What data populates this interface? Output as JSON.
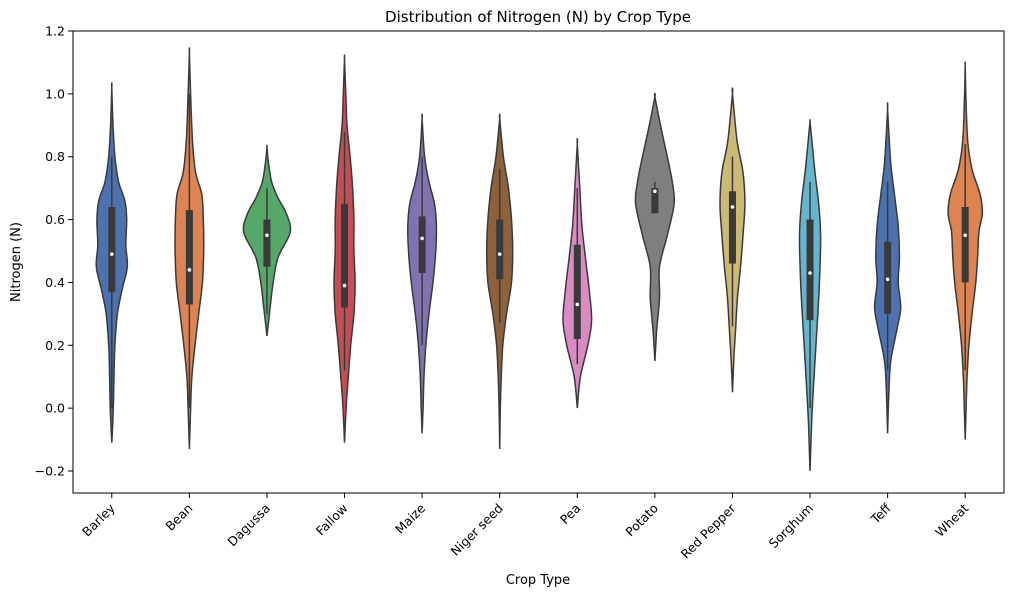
{
  "chart_data": {
    "type": "violin",
    "title": "Distribution of Nitrogen (N) by Crop Type",
    "xlabel": "Crop Type",
    "ylabel": "Nitrogen (N)",
    "ylim": [
      -0.27,
      1.2
    ],
    "yticks": [
      -0.2,
      0.0,
      0.2,
      0.4,
      0.6,
      0.8,
      1.0,
      1.2
    ],
    "ytick_labels": [
      "−0.2",
      "0.0",
      "0.2",
      "0.4",
      "0.6",
      "0.8",
      "1.0",
      "1.2"
    ],
    "grid": false,
    "categories": [
      "Barley",
      "Bean",
      "Dagussa",
      "Fallow",
      "Maize",
      "Niger seed",
      "Pea",
      "Potato",
      "Red Pepper",
      "Sorghum",
      "Teff",
      "Wheat"
    ],
    "series": [
      {
        "category": "Barley",
        "color": "#4c72b0",
        "min": -0.11,
        "max": 1.02,
        "q1": 0.37,
        "median": 0.49,
        "q3": 0.64,
        "whisker_low": 0.0,
        "whisker_high": 0.8,
        "density": [
          [
            -0.11,
            0.0
          ],
          [
            0.0,
            0.05
          ],
          [
            0.1,
            0.07
          ],
          [
            0.2,
            0.1
          ],
          [
            0.3,
            0.18
          ],
          [
            0.38,
            0.34
          ],
          [
            0.45,
            0.5
          ],
          [
            0.52,
            0.45
          ],
          [
            0.6,
            0.48
          ],
          [
            0.66,
            0.42
          ],
          [
            0.72,
            0.22
          ],
          [
            0.8,
            0.1
          ],
          [
            0.9,
            0.04
          ],
          [
            1.02,
            0.0
          ]
        ]
      },
      {
        "category": "Bean",
        "color": "#dd8452",
        "min": -0.13,
        "max": 1.13,
        "q1": 0.33,
        "median": 0.44,
        "q3": 0.63,
        "whisker_low": 0.0,
        "whisker_high": 1.0,
        "density": [
          [
            -0.13,
            0.0
          ],
          [
            0.0,
            0.04
          ],
          [
            0.1,
            0.08
          ],
          [
            0.2,
            0.18
          ],
          [
            0.3,
            0.3
          ],
          [
            0.4,
            0.42
          ],
          [
            0.5,
            0.46
          ],
          [
            0.6,
            0.45
          ],
          [
            0.68,
            0.4
          ],
          [
            0.75,
            0.2
          ],
          [
            0.85,
            0.1
          ],
          [
            1.0,
            0.04
          ],
          [
            1.13,
            0.0
          ]
        ]
      },
      {
        "category": "Dagussa",
        "color": "#55a868",
        "min": 0.23,
        "max": 0.83,
        "q1": 0.45,
        "median": 0.55,
        "q3": 0.6,
        "whisker_low": 0.3,
        "whisker_high": 0.7,
        "density": [
          [
            0.23,
            0.0
          ],
          [
            0.3,
            0.08
          ],
          [
            0.4,
            0.2
          ],
          [
            0.48,
            0.36
          ],
          [
            0.56,
            0.75
          ],
          [
            0.62,
            0.62
          ],
          [
            0.67,
            0.35
          ],
          [
            0.72,
            0.15
          ],
          [
            0.78,
            0.05
          ],
          [
            0.83,
            0.0
          ]
        ]
      },
      {
        "category": "Fallow",
        "color": "#c44e52",
        "min": -0.11,
        "max": 1.11,
        "q1": 0.32,
        "median": 0.39,
        "q3": 0.65,
        "whisker_low": 0.12,
        "whisker_high": 0.88,
        "density": [
          [
            -0.11,
            0.0
          ],
          [
            0.0,
            0.05
          ],
          [
            0.1,
            0.12
          ],
          [
            0.2,
            0.2
          ],
          [
            0.3,
            0.3
          ],
          [
            0.4,
            0.34
          ],
          [
            0.5,
            0.3
          ],
          [
            0.6,
            0.3
          ],
          [
            0.7,
            0.26
          ],
          [
            0.8,
            0.18
          ],
          [
            0.9,
            0.08
          ],
          [
            1.0,
            0.04
          ],
          [
            1.11,
            0.0
          ]
        ]
      },
      {
        "category": "Maize",
        "color": "#8172b2",
        "min": -0.08,
        "max": 0.92,
        "q1": 0.43,
        "median": 0.54,
        "q3": 0.61,
        "whisker_low": 0.2,
        "whisker_high": 0.8,
        "density": [
          [
            -0.08,
            0.0
          ],
          [
            0.0,
            0.03
          ],
          [
            0.1,
            0.06
          ],
          [
            0.2,
            0.12
          ],
          [
            0.3,
            0.22
          ],
          [
            0.4,
            0.35
          ],
          [
            0.5,
            0.44
          ],
          [
            0.58,
            0.46
          ],
          [
            0.65,
            0.4
          ],
          [
            0.72,
            0.22
          ],
          [
            0.8,
            0.08
          ],
          [
            0.92,
            0.0
          ]
        ]
      },
      {
        "category": "Niger seed",
        "color": "#8c613c",
        "min": -0.13,
        "max": 0.92,
        "q1": 0.41,
        "median": 0.49,
        "q3": 0.6,
        "whisker_low": 0.27,
        "whisker_high": 0.76,
        "density": [
          [
            -0.13,
            0.0
          ],
          [
            0.0,
            0.02
          ],
          [
            0.1,
            0.05
          ],
          [
            0.2,
            0.1
          ],
          [
            0.3,
            0.22
          ],
          [
            0.4,
            0.38
          ],
          [
            0.5,
            0.42
          ],
          [
            0.6,
            0.38
          ],
          [
            0.7,
            0.28
          ],
          [
            0.8,
            0.12
          ],
          [
            0.92,
            0.0
          ]
        ]
      },
      {
        "category": "Pea",
        "color": "#da8bc3",
        "min": 0.0,
        "max": 0.84,
        "q1": 0.22,
        "median": 0.33,
        "q3": 0.52,
        "whisker_low": 0.14,
        "whisker_high": 0.7,
        "density": [
          [
            0.0,
            0.0
          ],
          [
            0.1,
            0.1
          ],
          [
            0.2,
            0.34
          ],
          [
            0.28,
            0.46
          ],
          [
            0.38,
            0.38
          ],
          [
            0.48,
            0.26
          ],
          [
            0.58,
            0.15
          ],
          [
            0.7,
            0.08
          ],
          [
            0.84,
            0.0
          ]
        ]
      },
      {
        "category": "Potato",
        "color": "#7f7f7f",
        "min": 0.15,
        "max": 0.99,
        "q1": 0.62,
        "median": 0.69,
        "q3": 0.7,
        "whisker_low": 0.62,
        "whisker_high": 0.72,
        "density": [
          [
            0.15,
            0.0
          ],
          [
            0.25,
            0.06
          ],
          [
            0.35,
            0.15
          ],
          [
            0.45,
            0.15
          ],
          [
            0.55,
            0.4
          ],
          [
            0.65,
            0.62
          ],
          [
            0.72,
            0.56
          ],
          [
            0.8,
            0.4
          ],
          [
            0.9,
            0.18
          ],
          [
            0.99,
            0.0
          ]
        ]
      },
      {
        "category": "Red Pepper",
        "color": "#ccb974",
        "min": 0.05,
        "max": 1.0,
        "q1": 0.46,
        "median": 0.64,
        "q3": 0.69,
        "whisker_low": 0.26,
        "whisker_high": 0.8,
        "density": [
          [
            0.05,
            0.0
          ],
          [
            0.15,
            0.04
          ],
          [
            0.25,
            0.1
          ],
          [
            0.35,
            0.16
          ],
          [
            0.45,
            0.26
          ],
          [
            0.55,
            0.34
          ],
          [
            0.65,
            0.4
          ],
          [
            0.75,
            0.34
          ],
          [
            0.85,
            0.15
          ],
          [
            1.0,
            0.0
          ]
        ]
      },
      {
        "category": "Sorghum",
        "color": "#64b5cd",
        "min": -0.2,
        "max": 0.91,
        "q1": 0.28,
        "median": 0.43,
        "q3": 0.6,
        "whisker_low": 0.0,
        "whisker_high": 0.72,
        "density": [
          [
            -0.2,
            0.0
          ],
          [
            -0.05,
            0.05
          ],
          [
            0.05,
            0.1
          ],
          [
            0.15,
            0.16
          ],
          [
            0.25,
            0.22
          ],
          [
            0.35,
            0.28
          ],
          [
            0.45,
            0.32
          ],
          [
            0.55,
            0.34
          ],
          [
            0.65,
            0.28
          ],
          [
            0.75,
            0.16
          ],
          [
            0.85,
            0.06
          ],
          [
            0.91,
            0.0
          ]
        ]
      },
      {
        "category": "Teff",
        "color": "#4c72b0",
        "min": -0.08,
        "max": 0.95,
        "q1": 0.3,
        "median": 0.41,
        "q3": 0.53,
        "whisker_low": 0.12,
        "whisker_high": 0.72,
        "density": [
          [
            -0.08,
            0.0
          ],
          [
            0.05,
            0.04
          ],
          [
            0.15,
            0.1
          ],
          [
            0.25,
            0.3
          ],
          [
            0.32,
            0.42
          ],
          [
            0.4,
            0.34
          ],
          [
            0.48,
            0.38
          ],
          [
            0.58,
            0.34
          ],
          [
            0.68,
            0.22
          ],
          [
            0.78,
            0.1
          ],
          [
            0.95,
            0.0
          ]
        ]
      },
      {
        "category": "Wheat",
        "color": "#dd8452",
        "min": -0.1,
        "max": 1.09,
        "q1": 0.4,
        "median": 0.55,
        "q3": 0.64,
        "whisker_low": 0.12,
        "whisker_high": 0.84,
        "density": [
          [
            -0.1,
            0.0
          ],
          [
            0.0,
            0.03
          ],
          [
            0.1,
            0.06
          ],
          [
            0.2,
            0.12
          ],
          [
            0.3,
            0.22
          ],
          [
            0.4,
            0.34
          ],
          [
            0.48,
            0.4
          ],
          [
            0.56,
            0.44
          ],
          [
            0.62,
            0.55
          ],
          [
            0.68,
            0.48
          ],
          [
            0.76,
            0.22
          ],
          [
            0.85,
            0.08
          ],
          [
            1.0,
            0.02
          ],
          [
            1.09,
            0.0
          ]
        ]
      }
    ]
  }
}
